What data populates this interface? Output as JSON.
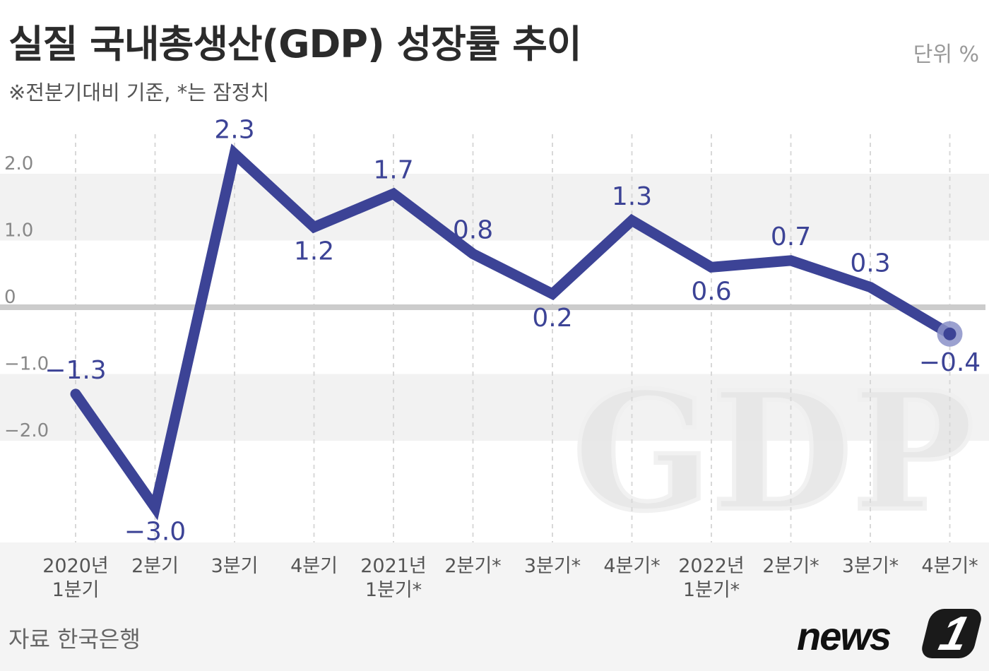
{
  "header": {
    "title": "실질 국내총생산(GDP) 성장률 추이",
    "subtitle": "※전분기대비 기준, *는 잠정치",
    "unit": "단위 %"
  },
  "footer": {
    "source": "자료  한국은행",
    "logo_text": "news",
    "logo_badge": "1"
  },
  "watermark": "GDP",
  "colors": {
    "line": "#3c4396",
    "marker": "#8a90c8",
    "zero_line": "#cccccc",
    "band": "#f2f2f2",
    "axis_text": "#888888"
  },
  "chart_data": {
    "type": "line",
    "title": "실질 국내총생산(GDP) 성장률 추이",
    "categories": [
      [
        "2020년",
        "1분기"
      ],
      [
        "2분기"
      ],
      [
        "3분기"
      ],
      [
        "4분기"
      ],
      [
        "2021년",
        "1분기*"
      ],
      [
        "2분기*"
      ],
      [
        "3분기*"
      ],
      [
        "4분기*"
      ],
      [
        "2022년",
        "1분기*"
      ],
      [
        "2분기*"
      ],
      [
        "3분기*"
      ],
      [
        "4분기*"
      ]
    ],
    "values": [
      -1.3,
      -3.0,
      2.3,
      1.2,
      1.7,
      0.8,
      0.2,
      1.3,
      0.6,
      0.7,
      0.3,
      -0.4
    ],
    "value_labels": [
      "−1.3",
      "−3.0",
      "2.3",
      "1.2",
      "1.7",
      "0.8",
      "0.2",
      "1.3",
      "0.6",
      "0.7",
      "0.3",
      "−0.4"
    ],
    "yticks": [
      2.0,
      1.0,
      0,
      -1.0,
      -2.0
    ],
    "ytick_labels": [
      "2.0",
      "1.0",
      "0",
      "−1.0",
      "−2.0"
    ],
    "ylim": [
      -3.2,
      2.3
    ],
    "grid": false,
    "highlight_last": true
  }
}
